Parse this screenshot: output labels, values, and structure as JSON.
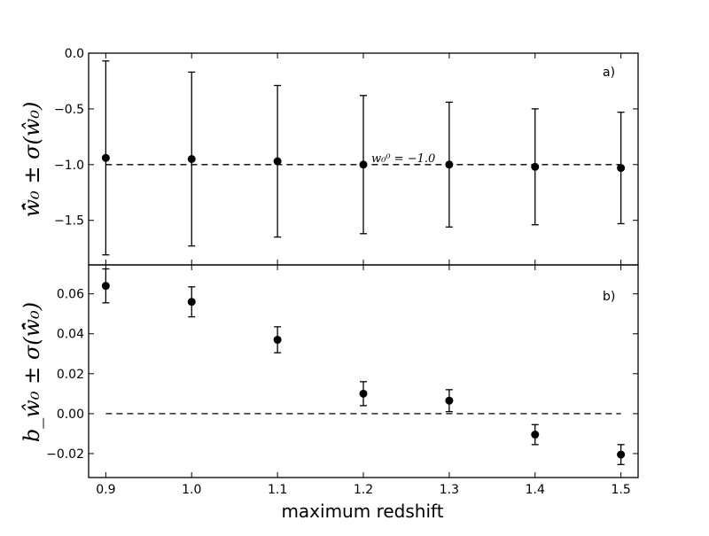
{
  "chart_data": [
    {
      "type": "scatter",
      "panel_label": "a)",
      "ylabel": "w̄̂₀ ± σ(ŵ₀)",
      "ylim": [
        -1.9,
        0.0
      ],
      "yticks": [
        -1.5,
        -1.0,
        -0.5,
        0.0
      ],
      "ytick_labels": [
        "−1.5",
        "−1.0",
        "−0.5",
        "0.0"
      ],
      "x": [
        0.9,
        1.0,
        1.1,
        1.2,
        1.3,
        1.4,
        1.5
      ],
      "y": [
        -0.94,
        -0.95,
        -0.97,
        -1.0,
        -1.0,
        -1.02,
        -1.03
      ],
      "yerr": [
        0.87,
        0.78,
        0.68,
        0.62,
        0.56,
        0.52,
        0.5
      ],
      "reference_line": -1.0,
      "reference_label": "w₀⁰ = −1.0"
    },
    {
      "type": "scatter",
      "panel_label": "b)",
      "ylabel": "b_ŵ₀ ± σ(w̄̂₀)",
      "ylim": [
        -0.032,
        0.0745
      ],
      "yticks": [
        -0.02,
        0.0,
        0.02,
        0.04,
        0.06
      ],
      "ytick_labels": [
        "−0.02",
        "0.00",
        "0.02",
        "0.04",
        "0.06"
      ],
      "x": [
        0.9,
        1.0,
        1.1,
        1.2,
        1.3,
        1.4,
        1.5
      ],
      "y": [
        0.064,
        0.056,
        0.037,
        0.01,
        0.0065,
        -0.0105,
        -0.0205
      ],
      "yerr": [
        0.0085,
        0.0075,
        0.0065,
        0.006,
        0.0055,
        0.005,
        0.005
      ],
      "reference_line": 0.0
    }
  ],
  "xaxis": {
    "label": "maximum redshift",
    "xlim": [
      0.88,
      1.52
    ],
    "ticks": [
      0.9,
      1.0,
      1.1,
      1.2,
      1.3,
      1.4,
      1.5
    ],
    "tick_labels": [
      "0.9",
      "1.0",
      "1.1",
      "1.2",
      "1.3",
      "1.4",
      "1.5"
    ]
  }
}
